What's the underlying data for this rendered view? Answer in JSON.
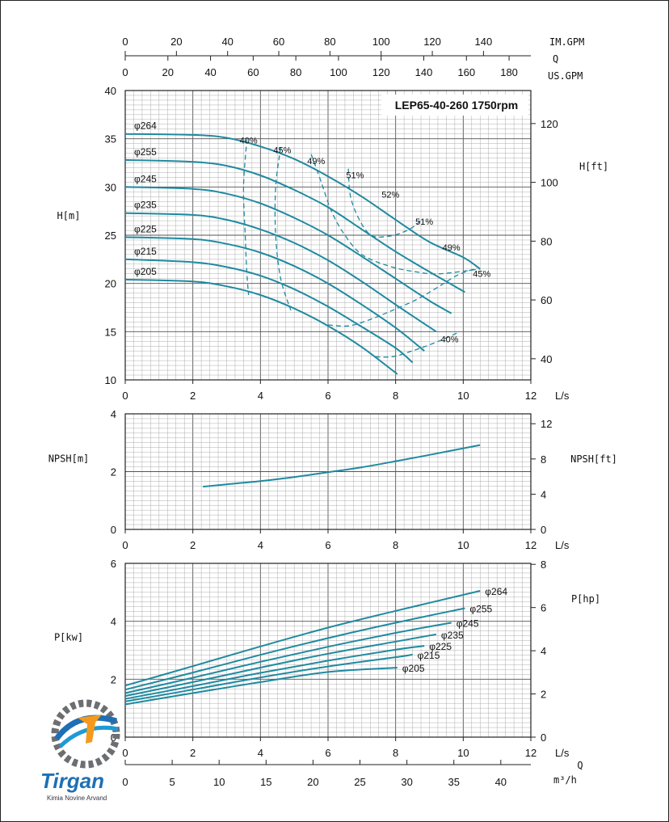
{
  "chart_data": [
    {
      "type": "line",
      "title": "LEP65-40-260 1750rpm",
      "xlabel": "L/s",
      "ylabel": "H[m]",
      "ylabel_right": "H[ft]",
      "xlim": [
        0,
        12
      ],
      "ylim": [
        10,
        40
      ],
      "x_ticks": [
        "0",
        "2",
        "4",
        "6",
        "8",
        "10",
        "12"
      ],
      "y_ticks": [
        "10",
        "15",
        "20",
        "25",
        "30",
        "35",
        "40"
      ],
      "y_ticks_right": [
        "40",
        "60",
        "80",
        "100",
        "120"
      ],
      "top_axes": [
        {
          "label": "IM.GPM",
          "ticks": [
            "0",
            "20",
            "40",
            "60",
            "80",
            "100",
            "120",
            "140"
          ],
          "max": 158.5
        },
        {
          "label": "Q",
          "ticks": []
        },
        {
          "label": "US.GPM",
          "ticks": [
            "0",
            "20",
            "40",
            "60",
            "80",
            "100",
            "120",
            "140",
            "160",
            "180"
          ],
          "max": 190.2
        }
      ],
      "series": [
        {
          "name": "φ264",
          "x": [
            0,
            2,
            3,
            4,
            5,
            6,
            7,
            8,
            9,
            10,
            10.5
          ],
          "y": [
            35.5,
            35.4,
            35.1,
            34.2,
            32.9,
            31.1,
            29.0,
            26.6,
            24.3,
            22.7,
            21.5
          ]
        },
        {
          "name": "φ255",
          "x": [
            0,
            2,
            3,
            4,
            5,
            6,
            7,
            8,
            9,
            10.05
          ],
          "y": [
            32.8,
            32.6,
            32.2,
            31.2,
            29.7,
            27.9,
            25.6,
            23.3,
            21.2,
            19.1
          ]
        },
        {
          "name": "φ245",
          "x": [
            0,
            2,
            3,
            4,
            5,
            6,
            7,
            8,
            9,
            9.65
          ],
          "y": [
            30.0,
            29.8,
            29.3,
            28.3,
            26.8,
            25.0,
            22.8,
            20.5,
            18.2,
            16.9
          ]
        },
        {
          "name": "φ235",
          "x": [
            0,
            2,
            3,
            4,
            5,
            6,
            7,
            8,
            9.2
          ],
          "y": [
            27.3,
            27.1,
            26.6,
            25.6,
            24.2,
            22.4,
            20.2,
            17.8,
            15.0
          ]
        },
        {
          "name": "φ225",
          "x": [
            0,
            2,
            3,
            4,
            5,
            6,
            7,
            8,
            8.85
          ],
          "y": [
            24.8,
            24.6,
            24.1,
            23.2,
            21.8,
            20.0,
            17.8,
            15.4,
            13.0
          ]
        },
        {
          "name": "φ215",
          "x": [
            0,
            2,
            3,
            4,
            5,
            6,
            7,
            8,
            8.5
          ],
          "y": [
            22.5,
            22.2,
            21.7,
            20.8,
            19.4,
            17.6,
            15.5,
            13.3,
            11.8
          ]
        },
        {
          "name": "φ205",
          "x": [
            0,
            2,
            3,
            4,
            5,
            6,
            7,
            8.05
          ],
          "y": [
            20.4,
            20.2,
            19.7,
            18.8,
            17.4,
            15.6,
            13.4,
            10.6
          ]
        }
      ],
      "efficiency_labels": [
        {
          "text": "40%",
          "x": 3.6,
          "y": 35.5
        },
        {
          "text": "45%",
          "x": 4.6,
          "y": 34.5
        },
        {
          "text": "49%",
          "x": 5.6,
          "y": 33.4
        },
        {
          "text": "51%",
          "x": 6.75,
          "y": 31.9
        },
        {
          "text": "52%",
          "x": 7.8,
          "y": 29.9
        },
        {
          "text": "51%",
          "x": 8.8,
          "y": 27.1
        },
        {
          "text": "49%",
          "x": 9.6,
          "y": 24.4
        },
        {
          "text": "45%",
          "x": 10.5,
          "y": 21.7
        },
        {
          "text": "40%",
          "x": 9.55,
          "y": 14.9
        }
      ],
      "efficiency_curves": [
        {
          "name": "40%",
          "x": [
            3.6,
            3.5,
            3.55,
            3.6,
            3.65
          ],
          "y": [
            35.0,
            30.0,
            25.0,
            21.0,
            18.8
          ]
        },
        {
          "name": "45%",
          "x": [
            4.6,
            4.45,
            4.45,
            4.6,
            4.9
          ],
          "y": [
            34.1,
            30.0,
            25.0,
            20.5,
            17.2
          ]
        },
        {
          "name": "49%",
          "x": [
            5.5,
            5.8,
            6.1,
            6.5,
            7.0,
            7.8,
            8.6,
            9.3,
            10.5
          ],
          "y": [
            33.4,
            30.5,
            27.5,
            25.0,
            23.0,
            21.8,
            21.2,
            21.0,
            21.5
          ]
        },
        {
          "name": "51%",
          "x": [
            6.6,
            6.7,
            7.2,
            7.8,
            8.4,
            8.8
          ],
          "y": [
            31.9,
            28.5,
            25.2,
            24.9,
            25.6,
            26.7
          ]
        },
        {
          "name": "45b",
          "x": [
            6.0,
            6.6,
            7.2,
            7.9,
            8.6,
            9.2,
            9.8,
            10.4
          ],
          "y": [
            15.7,
            15.6,
            16.2,
            17.2,
            18.3,
            19.5,
            20.8,
            21.6
          ]
        },
        {
          "name": "40b",
          "x": [
            7.4,
            7.9,
            8.4,
            8.9,
            9.4,
            9.9
          ],
          "y": [
            12.4,
            12.4,
            12.9,
            13.5,
            14.2,
            15.0
          ]
        }
      ]
    },
    {
      "type": "line",
      "xlabel": "L/s",
      "ylabel": "NPSH[m]",
      "ylabel_right": "NPSH[ft]",
      "xlim": [
        0,
        12
      ],
      "ylim": [
        0,
        4
      ],
      "x_ticks": [
        "0",
        "2",
        "4",
        "6",
        "8",
        "10",
        "12"
      ],
      "y_ticks": [
        "0",
        "2",
        "4"
      ],
      "y_ticks_right": [
        "0",
        "4",
        "8",
        "12"
      ],
      "series": [
        {
          "name": "NPSH",
          "x": [
            2.3,
            3.0,
            4.0,
            5.0,
            6.0,
            7.0,
            8.0,
            9.0,
            10.5
          ],
          "y": [
            1.48,
            1.56,
            1.67,
            1.81,
            1.98,
            2.15,
            2.36,
            2.58,
            2.92
          ]
        }
      ]
    },
    {
      "type": "line",
      "xlabel": "L/s",
      "ylabel": "P[kw]",
      "ylabel_right": "P[hp]",
      "xlim": [
        0,
        12
      ],
      "ylim": [
        0,
        6
      ],
      "x_ticks": [
        "0",
        "2",
        "4",
        "6",
        "8",
        "10",
        "12"
      ],
      "y_ticks": [
        "0",
        "2",
        "4",
        "6"
      ],
      "y_ticks_right": [
        "0",
        "2",
        "4",
        "6",
        "8"
      ],
      "bottom_axis": {
        "label": "m³/h",
        "q_label": "Q",
        "ticks": [
          "0",
          "5",
          "10",
          "15",
          "20",
          "25",
          "30",
          "35",
          "40"
        ],
        "max": 43.2
      },
      "series": [
        {
          "name": "φ264",
          "x": [
            0,
            2,
            4,
            6,
            8,
            10.5
          ],
          "y": [
            1.78,
            2.45,
            3.13,
            3.78,
            4.36,
            5.05
          ]
        },
        {
          "name": "φ255",
          "x": [
            0,
            2,
            4,
            6,
            8,
            10.05
          ],
          "y": [
            1.64,
            2.23,
            2.84,
            3.42,
            3.95,
            4.45
          ]
        },
        {
          "name": "φ245",
          "x": [
            0,
            2,
            4,
            6,
            8,
            9.65
          ],
          "y": [
            1.52,
            2.05,
            2.6,
            3.12,
            3.6,
            3.95
          ]
        },
        {
          "name": "φ235",
          "x": [
            0,
            2,
            4,
            6,
            8,
            9.2
          ],
          "y": [
            1.42,
            1.9,
            2.4,
            2.88,
            3.3,
            3.55
          ]
        },
        {
          "name": "φ225",
          "x": [
            0,
            2,
            4,
            6,
            8,
            8.85
          ],
          "y": [
            1.32,
            1.76,
            2.22,
            2.64,
            3.02,
            3.15
          ]
        },
        {
          "name": "φ215",
          "x": [
            0,
            2,
            4,
            6,
            8,
            8.5
          ],
          "y": [
            1.23,
            1.64,
            2.06,
            2.44,
            2.76,
            2.85
          ]
        },
        {
          "name": "φ205",
          "x": [
            0,
            2,
            4,
            6,
            8.05
          ],
          "y": [
            1.13,
            1.52,
            1.9,
            2.25,
            2.4
          ]
        }
      ]
    }
  ],
  "logo": {
    "name": "Tirgan",
    "subtitle": "Kimia Novine Arvand"
  },
  "colors": {
    "curve": "#1f8aa0",
    "grid": "#9a9a9a",
    "grid_major": "#555555"
  }
}
